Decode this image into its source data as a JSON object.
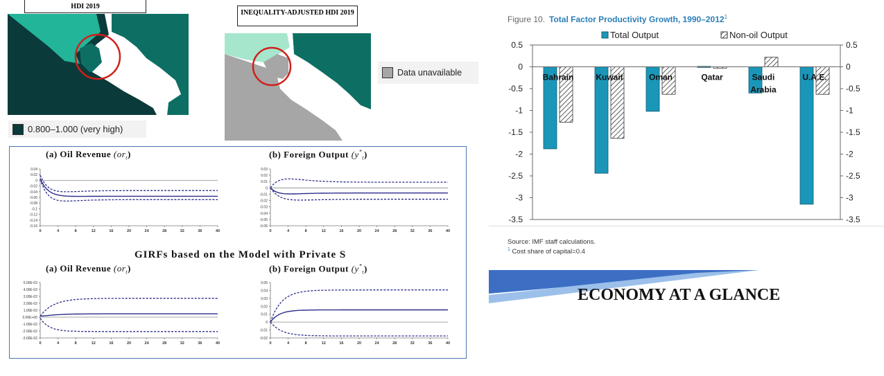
{
  "maps": {
    "hdi_title": "HDI 2019",
    "ihdi_title": "INEQUALITY-ADJUSTED HDI 2019",
    "legend_hdi": "0.800–1.000 (very high)",
    "legend_unavailable": "Data unavailable",
    "colors": {
      "very_high": "#0b3a3a",
      "high": "#0d6f63",
      "light": "#22b59a",
      "pale": "#a6e6cc",
      "unavailable": "#a6a6a6",
      "highlight_circle": "#d0201c"
    }
  },
  "girf": {
    "panel_a_top": {
      "label": "(a) Oil Revenue",
      "symbol": "(or",
      "sub": "t",
      "close": ")"
    },
    "panel_b_top": {
      "label": "(b) Foreign Output",
      "symbol": "(y",
      "sub": "t",
      "sup": "*",
      "close": ")"
    },
    "heading": "GIRFs based on the Model with Private S",
    "panel_a_bottom": {
      "label": "(a) Oil Revenue",
      "symbol": "(or",
      "sub": "t",
      "close": ")"
    },
    "panel_b_bottom": {
      "label": "(b) Foreign Output",
      "symbol": "(y",
      "sub": "t",
      "sup": "*",
      "close": ")"
    },
    "x_ticks": [
      "0",
      "4",
      "8",
      "12",
      "16",
      "20",
      "24",
      "28",
      "32",
      "36",
      "40"
    ],
    "top_a_y_ticks": [
      "0.04",
      "0.02",
      "0",
      "-0.02",
      "-0.04",
      "-0.06",
      "-0.08",
      "-0.1",
      "-0.12",
      "-0.14",
      "-0.16"
    ],
    "top_b_y_ticks": [
      "0.03",
      "0.02",
      "0.01",
      "0",
      "-0.01",
      "-0.02",
      "-0.03",
      "-0.04",
      "-0.05",
      "-0.06"
    ],
    "bottom_a_y_ticks": [
      "5.00E-02",
      "4.00E-02",
      "3.00E-02",
      "2.00E-02",
      "1.00E-02",
      "0.00E+00",
      "-1.00E-02",
      "-2.00E-02",
      "-3.00E-02"
    ],
    "bottom_b_y_ticks": [
      "0.05",
      "0.04",
      "0.03",
      "0.02",
      "0.01",
      "0",
      "-0.01",
      "-0.02"
    ],
    "line_color": "#2a2a8c"
  },
  "figure": {
    "number": "Figure 10.",
    "title": "Total Factor Productivity Growth, 1990–2012",
    "title_sup": "1",
    "source": "Source: IMF staff calculations.",
    "footnote_mark": "1",
    "footnote": "Cost share of capital=0.4",
    "bar_color": "#1a96b8"
  },
  "chart_data": {
    "type": "bar",
    "categories": [
      "Bahrain",
      "Kuwait",
      "Oman",
      "Qatar",
      "Saudi Arabia",
      "U.A.E."
    ],
    "series": [
      {
        "name": "Total Output",
        "values": [
          -1.88,
          -2.44,
          -1.02,
          0.01,
          -0.6,
          -3.15
        ]
      },
      {
        "name": "Non-oil Output",
        "values": [
          -1.27,
          -1.64,
          -0.63,
          -0.03,
          0.22,
          -0.63
        ]
      }
    ],
    "ylim": [
      -3.5,
      0.5
    ],
    "y_ticks": [
      "0.5",
      "0",
      "-0.5",
      "-1",
      "-1.5",
      "-2",
      "-2.5",
      "-3",
      "-3.5"
    ],
    "legend_position": "top",
    "grid": false
  },
  "banner": {
    "text": "ECONOMY AT A GLANCE",
    "color_dark": "#3c6fc4",
    "color_light": "#9cc0ea"
  }
}
